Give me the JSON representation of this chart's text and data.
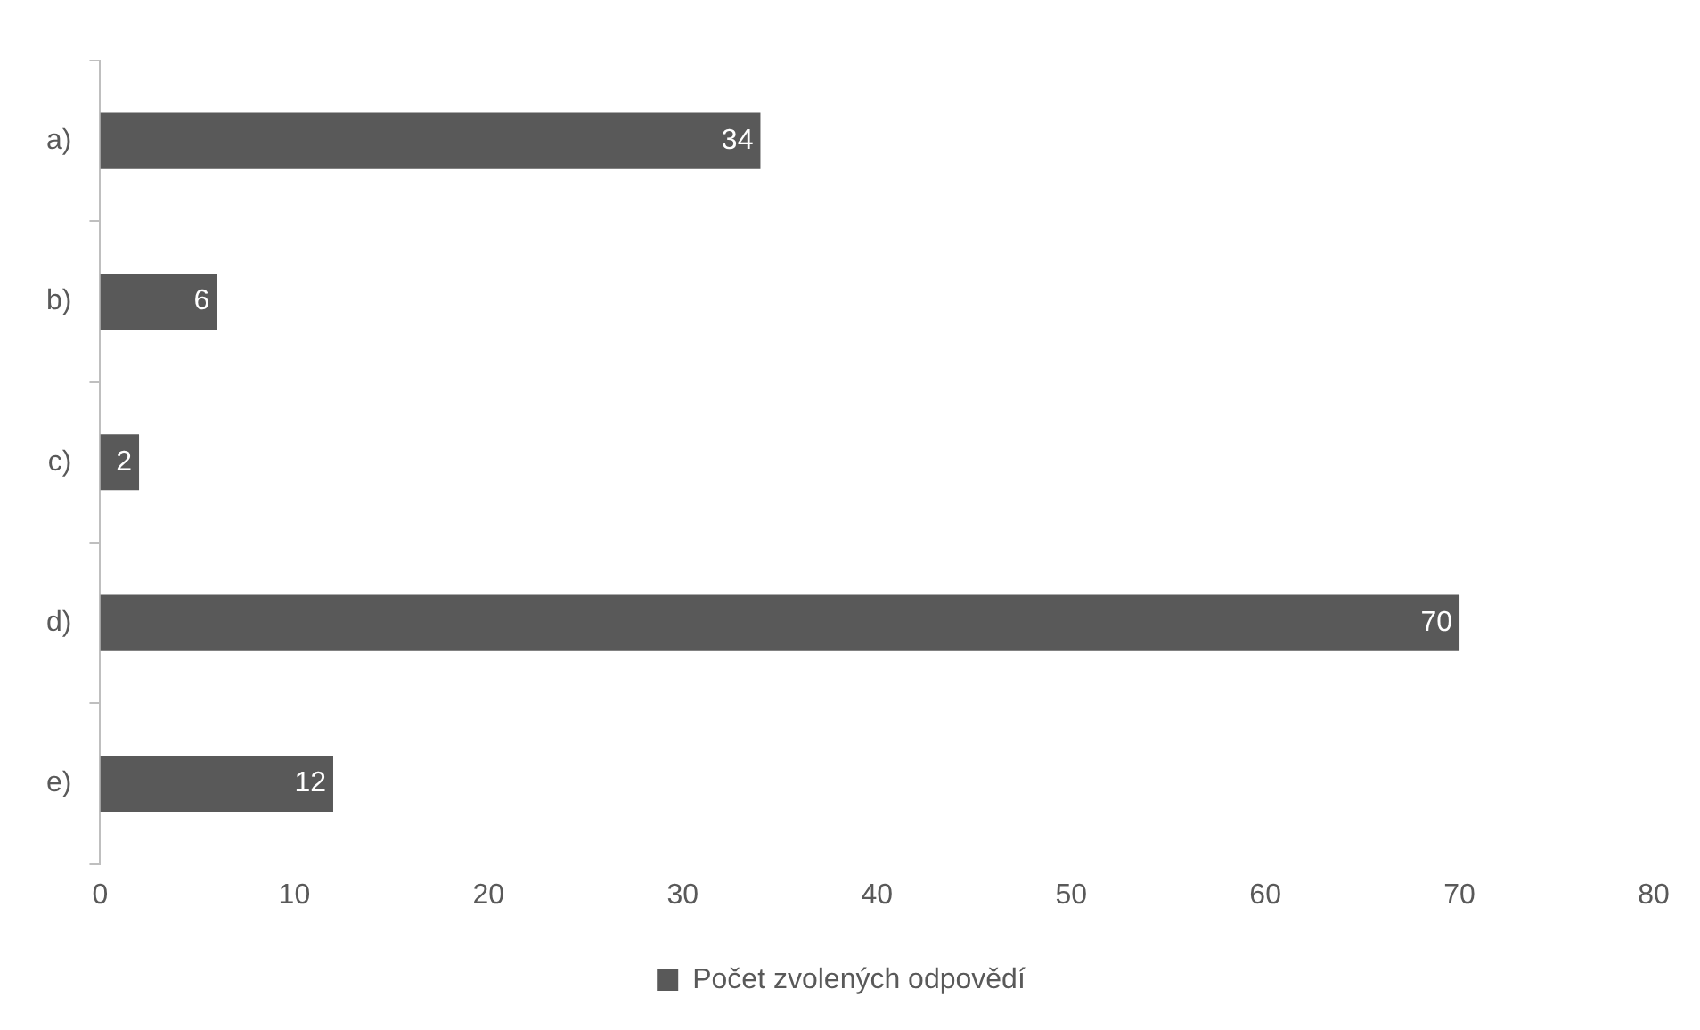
{
  "chart_data": {
    "type": "bar",
    "orientation": "horizontal",
    "categories": [
      "a)",
      "b)",
      "c)",
      "d)",
      "e)"
    ],
    "series": [
      {
        "name": "Počet zvolených odpovědí",
        "color": "#595959",
        "values": [
          34,
          6,
          2,
          70,
          12
        ]
      }
    ],
    "xlim": [
      0,
      80
    ],
    "xticks": [
      0,
      10,
      20,
      30,
      40,
      50,
      60,
      70,
      80
    ],
    "data_labels": true,
    "legend": "bottom",
    "grid": false
  }
}
